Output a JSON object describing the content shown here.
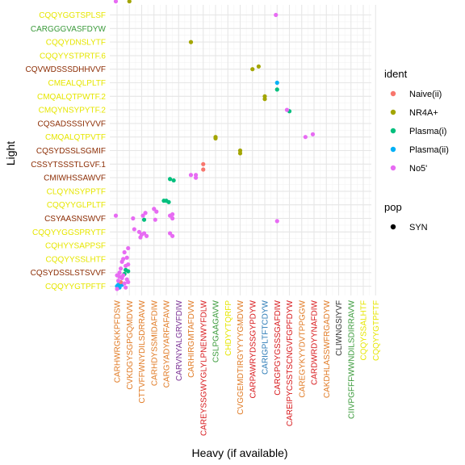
{
  "chart_data": {
    "type": "scatter",
    "xlabel": "Heavy (if available)",
    "ylabel": "Light",
    "grid": true,
    "legend_position": "right",
    "x_categories": [
      {
        "label": "CARHWRGKKPFDSW",
        "color": "#e07a24"
      },
      {
        "label": "CVKDGYSGPGQMDVW",
        "color": "#e07a24"
      },
      {
        "label": "CTTVFFWNYDILSDRRAVW",
        "color": "#e07a24"
      },
      {
        "label": "CARHDYSSMIDAFDIW",
        "color": "#e07a24"
      },
      {
        "label": "CARGYADYARFAFAVW",
        "color": "#e07a24"
      },
      {
        "label": "CARVNYALGRVFDIW",
        "color": "#7b3294"
      },
      {
        "label": "CARHIRGMTAFDVW",
        "color": "#e07a24"
      },
      {
        "label": "CAREYSSGWYGLYLPNENWYFDLW",
        "color": "#d7191c"
      },
      {
        "label": "CSLPGAAGAVW",
        "color": "#3a9a3a"
      },
      {
        "label": "CHDYYTQRFP",
        "color": "#e6e600"
      },
      {
        "label": "CVGGEMDTIRGYYYYGMDVW",
        "color": "#e07a24"
      },
      {
        "label": "CARPAWRYDSSGYPDYW",
        "color": "#d7191c"
      },
      {
        "label": "CARIGPLTFTCDYW",
        "color": "#2c7bb6"
      },
      {
        "label": "CARGPGYGSSSGAFDIW",
        "color": "#d7191c"
      },
      {
        "label": "CAREIPYCSSTSCNGVFGPFDYW",
        "color": "#d7191c"
      },
      {
        "label": "CAREGYKYYDVTPPGGW",
        "color": "#e07a24"
      },
      {
        "label": "CARDWRDYYNAFDIW",
        "color": "#d7191c"
      },
      {
        "label": "CAKDHLASSWFRGADYW",
        "color": "#e07a24"
      },
      {
        "label": "CLIWNGSIYVF",
        "color": "#333333"
      },
      {
        "label": "CIIVPGFFFWWNDILSDIRRAVW",
        "color": "#3a9a3a"
      },
      {
        "label": "CQQYSSALHTF",
        "color": "#e6e600"
      },
      {
        "label": "CQQYYGTPFTF",
        "color": "#e6e600"
      }
    ],
    "y_categories": [
      {
        "label": "CQQYYGTPFTF",
        "color": "#e6e600"
      },
      {
        "label": "CQSYDSSLSTSVVF",
        "color": "#8c2d04"
      },
      {
        "label": "CQQYYSSLHTF",
        "color": "#e6e600"
      },
      {
        "label": "CQHYYSAPPSF",
        "color": "#e6e600"
      },
      {
        "label": "CQQYYGGSPRYTF",
        "color": "#e6e600"
      },
      {
        "label": "CSYAASNSWVF",
        "color": "#8c2d04"
      },
      {
        "label": "CQQYYGLPLTF",
        "color": "#e6e600"
      },
      {
        "label": "CLQYNSYPPTF",
        "color": "#e6e600"
      },
      {
        "label": "CMIWHSSAWVF",
        "color": "#8c2d04"
      },
      {
        "label": "CSSYTSSSTLGVF.1",
        "color": "#8c2d04"
      },
      {
        "label": "CQSYDSSLSGMIF",
        "color": "#8c2d04"
      },
      {
        "label": "CMQALQTPVTF",
        "color": "#e6e600"
      },
      {
        "label": "CQSADSSSIYVVF",
        "color": "#8c2d04"
      },
      {
        "label": "CMQYNSYPYTF.2",
        "color": "#e6e600"
      },
      {
        "label": "CMQALQTPWTF.2",
        "color": "#e6e600"
      },
      {
        "label": "CMEALQLPLTF",
        "color": "#e6e600"
      },
      {
        "label": "CQVWDSSSDHHVVF",
        "color": "#8c2d04"
      },
      {
        "label": "CQQYYSTPRTF.6",
        "color": "#e6e600"
      },
      {
        "label": "CQQYDNSLYTF",
        "color": "#e6e600"
      },
      {
        "label": "CARGGGVASFDYW",
        "color": "#3a9a3a"
      },
      {
        "label": "CQQYGGTSPLSF",
        "color": "#e6e600"
      }
    ],
    "legend": {
      "ident_title": "ident",
      "ident_entries": [
        {
          "label": "Naive(ii)",
          "color": "#F8766D"
        },
        {
          "label": "NR4A+",
          "color": "#A3A500"
        },
        {
          "label": "Plasma(i)",
          "color": "#00BF7D"
        },
        {
          "label": "Plasma(ii)",
          "color": "#00B0F6"
        },
        {
          "label": "No5'",
          "color": "#E76BF3"
        }
      ],
      "pop_title": "pop",
      "pop_entries": [
        {
          "label": "SYN",
          "color": "#000000"
        }
      ]
    },
    "points": [
      {
        "x": 1,
        "y": 21,
        "ident": "NR4A+"
      },
      {
        "x": 6,
        "y": 18,
        "ident": "NR4A+"
      },
      {
        "x": 11,
        "y": 16,
        "ident": "NR4A+"
      },
      {
        "x": 11.5,
        "y": 16.2,
        "ident": "NR4A+"
      },
      {
        "x": 12,
        "y": 14,
        "ident": "NR4A+"
      },
      {
        "x": 12,
        "y": 13.8,
        "ident": "NR4A+"
      },
      {
        "x": 8,
        "y": 11,
        "ident": "NR4A+"
      },
      {
        "x": 8,
        "y": 10.9,
        "ident": "NR4A+"
      },
      {
        "x": 10,
        "y": 10,
        "ident": "NR4A+"
      },
      {
        "x": 10,
        "y": 9.8,
        "ident": "NR4A+"
      },
      {
        "x": 13,
        "y": 14.5,
        "ident": "Plasma(i)"
      },
      {
        "x": 14,
        "y": 12.9,
        "ident": "Plasma(i)"
      },
      {
        "x": 4.3,
        "y": 7.9,
        "ident": "Plasma(i)"
      },
      {
        "x": 4.6,
        "y": 7.8,
        "ident": "Plasma(i)"
      },
      {
        "x": 4,
        "y": 6.3,
        "ident": "Plasma(i)"
      },
      {
        "x": 3.8,
        "y": 6.3,
        "ident": "Plasma(i)"
      },
      {
        "x": 4.2,
        "y": 6.2,
        "ident": "Plasma(i)"
      },
      {
        "x": 2.2,
        "y": 4.9,
        "ident": "Plasma(i)"
      },
      {
        "x": 0.7,
        "y": 1.2,
        "ident": "Plasma(i)"
      },
      {
        "x": 0.9,
        "y": 1.1,
        "ident": "Plasma(i)"
      },
      {
        "x": 0.6,
        "y": 0.9,
        "ident": "Plasma(i)"
      },
      {
        "x": 13,
        "y": 15,
        "ident": "Plasma(ii)"
      },
      {
        "x": 0.3,
        "y": 0.2,
        "ident": "Plasma(ii)"
      },
      {
        "x": 0.1,
        "y": 0.1,
        "ident": "Plasma(ii)"
      },
      {
        "x": 0.2,
        "y": -0.1,
        "ident": "Plasma(ii)"
      },
      {
        "x": 0.0,
        "y": 0.0,
        "ident": "Plasma(ii)"
      },
      {
        "x": 0.4,
        "y": 0.1,
        "ident": "Plasma(ii)"
      },
      {
        "x": 7,
        "y": 9,
        "ident": "Naive(ii)"
      },
      {
        "x": 7,
        "y": 8.6,
        "ident": "Naive(ii)"
      },
      {
        "x": 0.3,
        "y": 0.3,
        "ident": "Naive(ii)"
      },
      {
        "x": -0.1,
        "y": 21,
        "ident": "No5'"
      },
      {
        "x": 12.9,
        "y": 20,
        "ident": "No5'"
      },
      {
        "x": 13.8,
        "y": 13,
        "ident": "No5'"
      },
      {
        "x": 15.3,
        "y": 11,
        "ident": "No5'"
      },
      {
        "x": 15.9,
        "y": 11.2,
        "ident": "No5'"
      },
      {
        "x": 6,
        "y": 8.2,
        "ident": "No5'"
      },
      {
        "x": 6.4,
        "y": 8.0,
        "ident": "No5'"
      },
      {
        "x": 6.4,
        "y": 8.2,
        "ident": "No5'"
      },
      {
        "x": 2.3,
        "y": 5.4,
        "ident": "No5'"
      },
      {
        "x": 2.1,
        "y": 5.2,
        "ident": "No5'"
      },
      {
        "x": 3.0,
        "y": 5.7,
        "ident": "No5'"
      },
      {
        "x": 3.2,
        "y": 5.5,
        "ident": "No5'"
      },
      {
        "x": 3.1,
        "y": 4.9,
        "ident": "No5'"
      },
      {
        "x": 4.3,
        "y": 5.2,
        "ident": "No5'"
      },
      {
        "x": 4.5,
        "y": 5.0,
        "ident": "No5'"
      },
      {
        "x": 1.3,
        "y": 5.0,
        "ident": "No5'"
      },
      {
        "x": -0.1,
        "y": 5.2,
        "ident": "No5'"
      },
      {
        "x": 4.5,
        "y": 5.3,
        "ident": "No5'"
      },
      {
        "x": 13,
        "y": 4.8,
        "ident": "No5'"
      },
      {
        "x": 1.4,
        "y": 4.2,
        "ident": "No5'"
      },
      {
        "x": 1.8,
        "y": 4.0,
        "ident": "No5'"
      },
      {
        "x": 2.0,
        "y": 3.8,
        "ident": "No5'"
      },
      {
        "x": 2.2,
        "y": 3.9,
        "ident": "No5'"
      },
      {
        "x": 1.9,
        "y": 3.6,
        "ident": "No5'"
      },
      {
        "x": 2.4,
        "y": 3.7,
        "ident": "No5'"
      },
      {
        "x": 4.3,
        "y": 3.9,
        "ident": "No5'"
      },
      {
        "x": 4.5,
        "y": 3.7,
        "ident": "No5'"
      },
      {
        "x": 0.9,
        "y": 2.8,
        "ident": "No5'"
      },
      {
        "x": 0.6,
        "y": 2.5,
        "ident": "No5'"
      },
      {
        "x": 0.8,
        "y": 2.1,
        "ident": "No5'"
      },
      {
        "x": 0.4,
        "y": 1.8,
        "ident": "No5'"
      },
      {
        "x": 0.9,
        "y": 1.6,
        "ident": "No5'"
      },
      {
        "x": 0.3,
        "y": 1.3,
        "ident": "No5'"
      },
      {
        "x": 0.5,
        "y": 0.8,
        "ident": "No5'"
      },
      {
        "x": 0.8,
        "y": 0.5,
        "ident": "No5'"
      },
      {
        "x": 0.1,
        "y": 0.4,
        "ident": "No5'"
      },
      {
        "x": 0.2,
        "y": 0.7,
        "ident": "No5'"
      },
      {
        "x": 0.6,
        "y": 0.2,
        "ident": "No5'"
      },
      {
        "x": 0.7,
        "y": -0.1,
        "ident": "No5'"
      },
      {
        "x": 0.0,
        "y": -0.2,
        "ident": "No5'"
      },
      {
        "x": 0.9,
        "y": 0.3,
        "ident": "No5'"
      },
      {
        "x": 0.4,
        "y": 0.6,
        "ident": "No5'"
      },
      {
        "x": 0.0,
        "y": 0.8,
        "ident": "No5'"
      },
      {
        "x": 0.2,
        "y": 1.0,
        "ident": "No5'"
      },
      {
        "x": 0.7,
        "y": 1.5,
        "ident": "No5'"
      },
      {
        "x": 0.5,
        "y": 2.0,
        "ident": "No5'"
      }
    ]
  }
}
